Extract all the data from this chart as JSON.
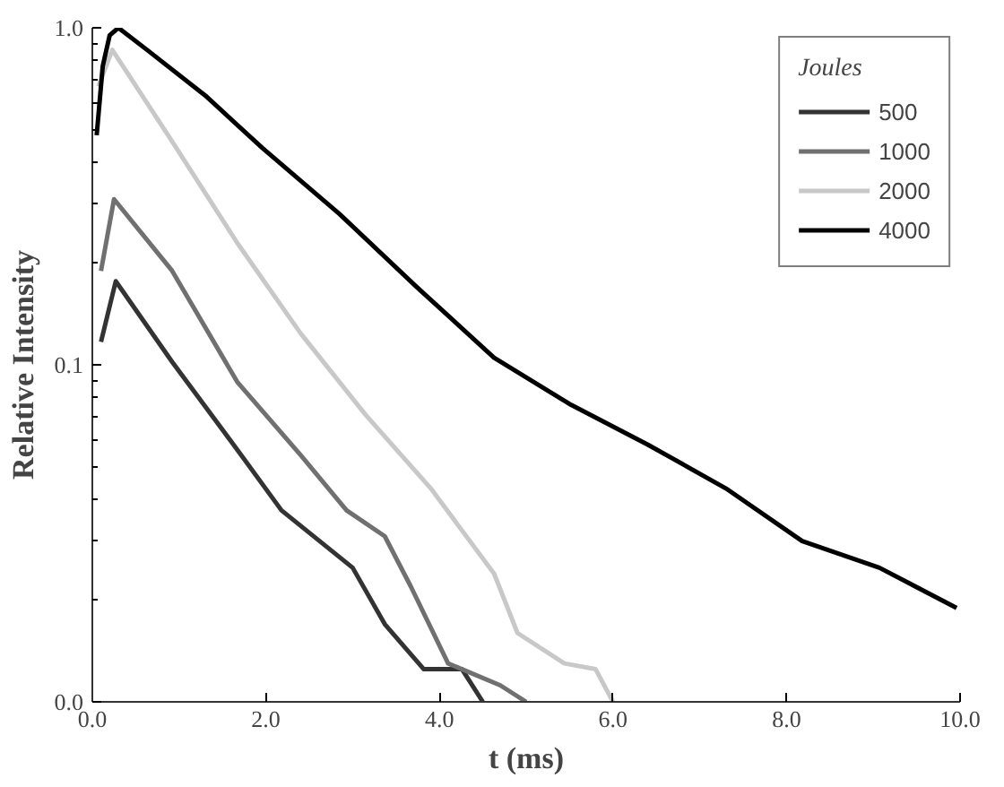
{
  "chart_data": {
    "type": "line",
    "xlabel": "t (ms)",
    "ylabel": "Relative Intensity",
    "legend_title": "Joules",
    "legend": "top right",
    "grid": false,
    "log": "y",
    "marker": "none",
    "line_style": "solid",
    "xlim": [
      0,
      10
    ],
    "xticks": [
      {
        "value": 0,
        "label": "0.0"
      },
      {
        "value": 2,
        "label": "2.0"
      },
      {
        "value": 4,
        "label": "4.0"
      },
      {
        "value": 6,
        "label": "6.0"
      },
      {
        "value": 8,
        "label": "8.0"
      },
      {
        "value": 10,
        "label": "10.0"
      }
    ],
    "ylim": [
      0.01,
      1.0
    ],
    "yticks": [
      {
        "value": 0.01,
        "label": "0.0"
      },
      {
        "value": 0.1,
        "label": "0.1"
      },
      {
        "value": 1.0,
        "label": "1.0"
      }
    ],
    "series": [
      {
        "name": "500",
        "color": "#333333",
        "x": [
          0.1,
          0.27,
          0.92,
          1.67,
          2.18,
          3.0,
          3.37,
          3.82,
          4.26,
          4.5
        ],
        "values": [
          0.117,
          0.177,
          0.102,
          0.056,
          0.037,
          0.025,
          0.017,
          0.0125,
          0.0125,
          0.01
        ]
      },
      {
        "name": "1000",
        "color": "#707070",
        "x": [
          0.1,
          0.25,
          0.92,
          1.67,
          2.4,
          2.93,
          3.37,
          3.67,
          4.1,
          4.7,
          5.0
        ],
        "values": [
          0.19,
          0.31,
          0.19,
          0.089,
          0.054,
          0.037,
          0.031,
          0.022,
          0.013,
          0.0112,
          0.01
        ]
      },
      {
        "name": "2000",
        "color": "#c8c8c8",
        "x": [
          0.07,
          0.23,
          0.92,
          1.67,
          2.4,
          3.15,
          3.9,
          4.63,
          4.9,
          5.44,
          5.8,
          6.0
        ],
        "values": [
          0.67,
          0.86,
          0.46,
          0.23,
          0.124,
          0.071,
          0.043,
          0.024,
          0.016,
          0.013,
          0.0125,
          0.01
        ]
      },
      {
        "name": "4000",
        "color": "#000000",
        "x": [
          0.05,
          0.12,
          0.2,
          0.3,
          0.63,
          1.3,
          1.96,
          2.85,
          3.74,
          4.63,
          5.52,
          6.4,
          7.3,
          8.18,
          9.07,
          9.96
        ],
        "values": [
          0.48,
          0.77,
          0.95,
          1.0,
          0.86,
          0.63,
          0.44,
          0.28,
          0.17,
          0.105,
          0.076,
          0.058,
          0.043,
          0.03,
          0.025,
          0.019
        ]
      }
    ]
  }
}
